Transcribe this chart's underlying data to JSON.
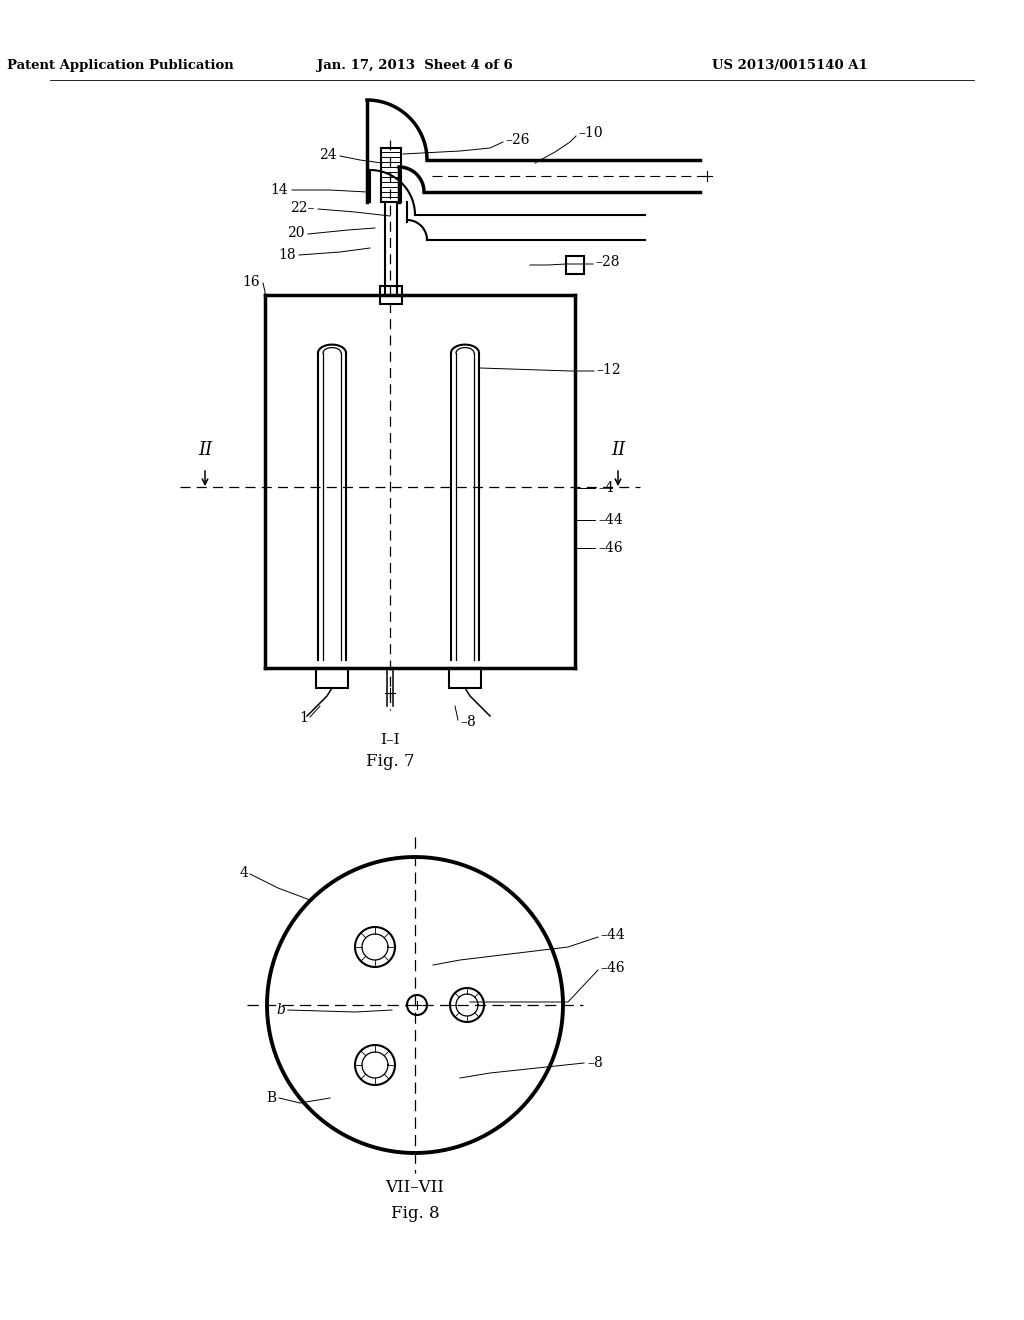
{
  "header_left": "Patent Application Publication",
  "header_mid": "Jan. 17, 2013  Sheet 4 of 6",
  "header_right": "US 2013/0015140 A1",
  "fig7_label": "Fig. 7",
  "fig7_section": "I–I",
  "fig8_label": "Fig. 8",
  "fig8_section": "VII–VII",
  "bg_color": "#ffffff",
  "line_color": "#000000"
}
